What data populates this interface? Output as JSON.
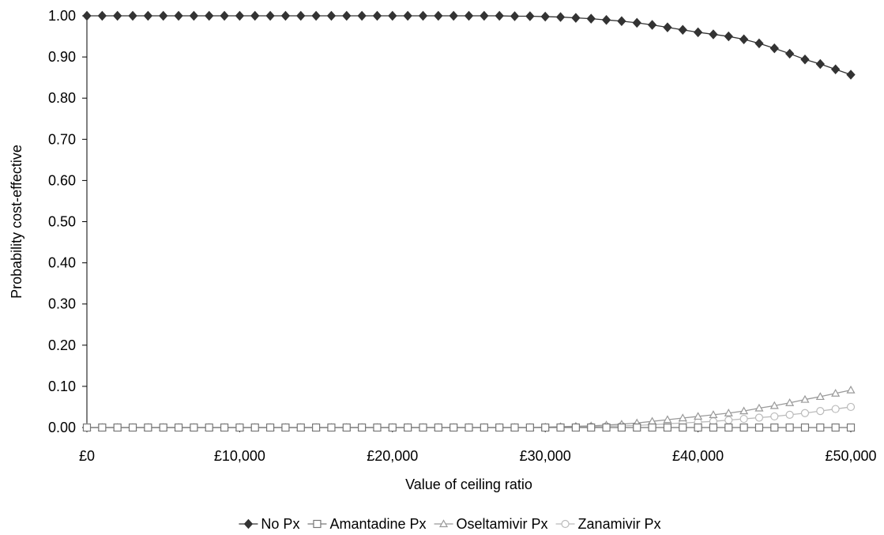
{
  "chart_data": {
    "type": "line",
    "xlabel": "Value of ceiling ratio",
    "ylabel": "Probability cost-effective",
    "xlim": [
      0,
      50000
    ],
    "ylim": [
      0,
      1
    ],
    "x_ticks": [
      0,
      10000,
      20000,
      30000,
      40000,
      50000
    ],
    "x_tick_labels": [
      "£0",
      "£10,000",
      "£20,000",
      "£30,000",
      "£40,000",
      "£50,000"
    ],
    "y_ticks": [
      0,
      0.1,
      0.2,
      0.3,
      0.4,
      0.5,
      0.6,
      0.7,
      0.8,
      0.9,
      1.0
    ],
    "y_tick_labels": [
      "0.00",
      "0.10",
      "0.20",
      "0.30",
      "0.40",
      "0.50",
      "0.60",
      "0.70",
      "0.80",
      "0.90",
      "1.00"
    ],
    "grid": false,
    "legend_position": "bottom",
    "x": [
      0,
      1000,
      2000,
      3000,
      4000,
      5000,
      6000,
      7000,
      8000,
      9000,
      10000,
      11000,
      12000,
      13000,
      14000,
      15000,
      16000,
      17000,
      18000,
      19000,
      20000,
      21000,
      22000,
      23000,
      24000,
      25000,
      26000,
      27000,
      28000,
      29000,
      30000,
      31000,
      32000,
      33000,
      34000,
      35000,
      36000,
      37000,
      38000,
      39000,
      40000,
      41000,
      42000,
      43000,
      44000,
      45000,
      46000,
      47000,
      48000,
      49000,
      50000
    ],
    "series": [
      {
        "name": "No Px",
        "marker": "diamond",
        "color": "#333333",
        "values": [
          1,
          1,
          1,
          1,
          1,
          1,
          1,
          1,
          1,
          1,
          1,
          1,
          1,
          1,
          1,
          1,
          1,
          1,
          1,
          1,
          1,
          1,
          1,
          1,
          1,
          1,
          1,
          1,
          0.999,
          0.999,
          0.998,
          0.997,
          0.995,
          0.993,
          0.99,
          0.987,
          0.983,
          0.978,
          0.972,
          0.966,
          0.96,
          0.955,
          0.95,
          0.943,
          0.933,
          0.921,
          0.908,
          0.894,
          0.883,
          0.87,
          0.857
        ]
      },
      {
        "name": "Amantadine Px",
        "marker": "square",
        "color": "#777777",
        "values": [
          0,
          0,
          0,
          0,
          0,
          0,
          0,
          0,
          0,
          0,
          0,
          0,
          0,
          0,
          0,
          0,
          0,
          0,
          0,
          0,
          0,
          0,
          0,
          0,
          0,
          0,
          0,
          0,
          0,
          0,
          0,
          0,
          0,
          0,
          0,
          0,
          0,
          0,
          0,
          0,
          0,
          0,
          0,
          0,
          0,
          0,
          0,
          0,
          0,
          0,
          0
        ]
      },
      {
        "name": "Oseltamivir Px",
        "marker": "triangle",
        "color": "#999999",
        "values": [
          0,
          0,
          0,
          0,
          0,
          0,
          0,
          0,
          0,
          0,
          0,
          0,
          0,
          0,
          0,
          0,
          0,
          0,
          0,
          0,
          0,
          0,
          0,
          0,
          0,
          0,
          0,
          0,
          0,
          0,
          0.001,
          0.002,
          0.003,
          0.004,
          0.006,
          0.008,
          0.011,
          0.015,
          0.019,
          0.023,
          0.027,
          0.031,
          0.035,
          0.04,
          0.047,
          0.053,
          0.06,
          0.068,
          0.075,
          0.083,
          0.091
        ]
      },
      {
        "name": "Zanamivir Px",
        "marker": "circle",
        "color": "#bbbbbb",
        "values": [
          0,
          0,
          0,
          0,
          0,
          0,
          0,
          0,
          0,
          0,
          0,
          0,
          0,
          0,
          0,
          0,
          0,
          0,
          0,
          0,
          0,
          0,
          0,
          0,
          0,
          0,
          0,
          0,
          0,
          0,
          0,
          0.001,
          0.001,
          0.002,
          0.003,
          0.004,
          0.005,
          0.007,
          0.009,
          0.011,
          0.013,
          0.015,
          0.018,
          0.021,
          0.024,
          0.027,
          0.031,
          0.035,
          0.04,
          0.045,
          0.05
        ]
      }
    ]
  }
}
